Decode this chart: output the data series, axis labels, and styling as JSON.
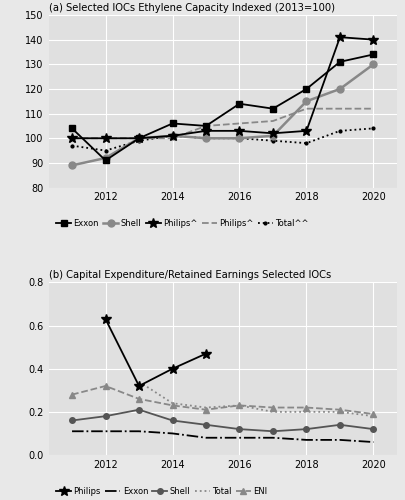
{
  "top_title": "(a) Selected IOCs Ethylene Capacity Indexed (2013=100)",
  "bottom_title": "(b) Capital Expenditure/Retained Earnings Selected IOCs",
  "years_a": [
    2011,
    2012,
    2013,
    2014,
    2015,
    2016,
    2017,
    2018,
    2019,
    2020
  ],
  "exxon_a": [
    104,
    91,
    100,
    106,
    105,
    114,
    112,
    120,
    131,
    134
  ],
  "shell_a": [
    89,
    92,
    100,
    101,
    100,
    100,
    101,
    115,
    120,
    130
  ],
  "philips_star_a": [
    100,
    100,
    100,
    101,
    103,
    103,
    102,
    103,
    141,
    140
  ],
  "philips_dash_a": [
    100,
    100,
    100,
    100,
    105,
    106,
    107,
    112,
    112,
    112
  ],
  "total_a": [
    97,
    95,
    99,
    101,
    100,
    100,
    99,
    98,
    103,
    104
  ],
  "years_b": [
    2011,
    2012,
    2013,
    2014,
    2015,
    2016,
    2017,
    2018,
    2019,
    2020
  ],
  "philips_b": [
    null,
    0.63,
    0.32,
    0.4,
    0.47,
    null,
    null,
    null,
    null,
    null
  ],
  "exxon_b": [
    0.11,
    0.11,
    0.11,
    0.1,
    0.08,
    0.08,
    0.08,
    0.07,
    0.07,
    0.06
  ],
  "shell_b": [
    0.16,
    0.18,
    0.21,
    0.16,
    0.14,
    0.12,
    0.11,
    0.12,
    0.14,
    0.12
  ],
  "total_b": [
    null,
    null,
    0.34,
    0.24,
    0.22,
    0.23,
    0.2,
    0.2,
    0.2,
    0.18
  ],
  "eni_b": [
    0.28,
    0.32,
    0.26,
    0.23,
    0.21,
    0.23,
    0.22,
    0.22,
    0.21,
    0.19
  ],
  "fig_bg": "#e8e8e8",
  "plot_bg": "#e0e0e0",
  "grid_color": "#ffffff"
}
